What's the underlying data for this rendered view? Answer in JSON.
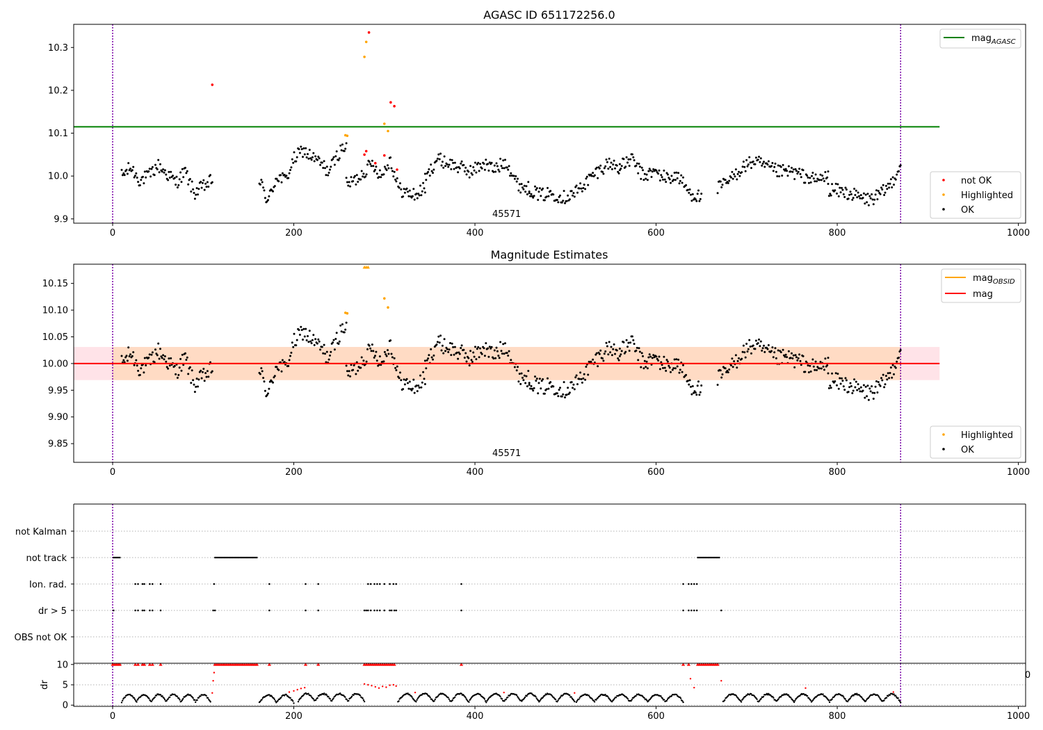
{
  "chart_data": [
    {
      "type": "scatter",
      "title": "AGASC ID 651172256.0",
      "xlabel": "",
      "ylabel": "",
      "xlim": [
        -43,
        1008
      ],
      "ylim": [
        9.89,
        10.354
      ],
      "x_ticks": [
        0,
        200,
        400,
        600,
        800,
        1000
      ],
      "y_ticks": [
        9.9,
        10.0,
        10.1,
        10.2,
        10.3
      ],
      "y_tick_labels": [
        "9.9",
        "10.0",
        "10.1",
        "10.2",
        "10.3"
      ],
      "grid": false,
      "vlines_dotted": [
        0,
        870
      ],
      "hlines": [
        {
          "name": "magAGASC",
          "y": 10.115,
          "x_range": [
            -43,
            913
          ],
          "color": "#008000"
        }
      ],
      "annotation": {
        "text": "45571",
        "x": 435,
        "y_position": "bottom"
      },
      "legend_upper": {
        "position": "upper right",
        "entries": [
          {
            "label": "mag",
            "subscript": "AGASC",
            "color": "#008000"
          }
        ]
      },
      "legend_lower": {
        "position": "lower right",
        "entries": [
          {
            "label": "not OK",
            "color": "#ff0000"
          },
          {
            "label": "Highlighted",
            "color": "#ffa500"
          },
          {
            "label": "OK",
            "color": "#000000"
          }
        ]
      },
      "series": [
        {
          "name": "not OK",
          "color": "#ff0000",
          "x": [
            110,
            278,
            280,
            283,
            290,
            300,
            307,
            311,
            314
          ],
          "y": [
            10.213,
            10.05,
            10.058,
            10.335,
            10.03,
            10.048,
            10.172,
            10.163,
            10.015
          ]
        },
        {
          "name": "Highlighted",
          "color": "#ffa500",
          "x": [
            257,
            259,
            278,
            280,
            300,
            304
          ],
          "y": [
            10.095,
            10.094,
            10.278,
            10.313,
            10.122,
            10.105
          ]
        },
        {
          "name": "OK",
          "color": "#000000",
          "segments": [
            {
              "x_start": 10,
              "x_end": 110,
              "y_points": [
                10.0,
                10.02,
                9.99,
                10.0,
                10.025,
                10.005,
                9.985,
                10.01,
                9.96,
                9.975,
                9.99
              ]
            },
            {
              "x_start": 162,
              "x_end": 258,
              "y_points": [
                9.99,
                9.94,
                10.0,
                9.99,
                10.04,
                10.06,
                10.045,
                10.03,
                10.01,
                10.05,
                10.075
              ]
            },
            {
              "x_start": 258,
              "x_end": 345,
              "y_points": [
                9.98,
                9.99,
                10.01,
                10.03,
                10.0,
                10.04,
                9.97,
                9.96,
                9.955,
                9.975
              ]
            },
            {
              "x_start": 345,
              "x_end": 460,
              "y_points": [
                9.99,
                10.04,
                10.03,
                10.02,
                10.01,
                10.03,
                10.015,
                10.035,
                9.98,
                9.97
              ]
            },
            {
              "x_start": 460,
              "x_end": 560,
              "y_points": [
                9.97,
                9.955,
                9.96,
                9.95,
                9.96,
                9.985,
                10.01,
                10.03,
                10.02
              ]
            },
            {
              "x_start": 560,
              "x_end": 650,
              "y_points": [
                10.02,
                10.04,
                10.0,
                10.01,
                9.995,
                10.0,
                9.96,
                9.95
              ]
            },
            {
              "x_start": 668,
              "x_end": 790,
              "y_points": [
                9.97,
                9.99,
                10.02,
                10.035,
                10.02,
                10.01,
                10.01,
                10.0,
                9.99,
                10.0
              ]
            },
            {
              "x_start": 790,
              "x_end": 870,
              "y_points": [
                9.97,
                9.965,
                9.96,
                9.95,
                9.945,
                9.955,
                9.98,
                10.025
              ]
            }
          ]
        }
      ]
    },
    {
      "type": "scatter",
      "title": "Magnitude Estimates",
      "xlabel": "",
      "ylabel": "",
      "xlim": [
        -43,
        1008
      ],
      "ylim": [
        9.815,
        10.186
      ],
      "x_ticks": [
        0,
        200,
        400,
        600,
        800,
        1000
      ],
      "y_ticks": [
        9.85,
        9.9,
        9.95,
        10.0,
        10.05,
        10.1,
        10.15
      ],
      "y_tick_labels": [
        "9.85",
        "9.90",
        "9.95",
        "10.00",
        "10.05",
        "10.10",
        "10.15"
      ],
      "grid": false,
      "vlines_dotted": [
        0,
        870
      ],
      "bands": [
        {
          "name": "mag band",
          "y_range": [
            9.969,
            10.031
          ],
          "x_range": [
            -43,
            913
          ],
          "color": "#ffc0cb"
        },
        {
          "name": "magOBSID band",
          "y_range": [
            9.969,
            10.031
          ],
          "x_range": [
            0,
            870
          ],
          "color": "#ffd8b8"
        }
      ],
      "hlines": [
        {
          "name": "magOBSID",
          "y": 10.0,
          "x_range": [
            0,
            870
          ],
          "color": "#ffa500"
        },
        {
          "name": "mag",
          "y": 10.0,
          "x_range": [
            -43,
            913
          ],
          "color": "#ff0000"
        }
      ],
      "annotation": {
        "text": "45571",
        "x": 435,
        "y_position": "bottom"
      },
      "legend_upper": {
        "position": "upper right",
        "entries": [
          {
            "label": "mag",
            "subscript": "OBSID",
            "color": "#ffa500"
          },
          {
            "label": "mag",
            "subscript": "",
            "color": "#ff0000"
          }
        ]
      },
      "legend_lower": {
        "position": "lower right",
        "entries": [
          {
            "label": "Highlighted",
            "color": "#ffa500"
          },
          {
            "label": "OK",
            "color": "#000000"
          }
        ]
      },
      "series": [
        {
          "name": "Highlighted",
          "color": "#ffa500",
          "x": [
            257,
            259,
            278,
            280,
            282,
            300,
            304
          ],
          "y": [
            10.095,
            10.094,
            10.184,
            10.184,
            10.184,
            10.122,
            10.105
          ]
        },
        {
          "name": "OK",
          "color": "#000000",
          "same_as_panel": 0
        }
      ]
    },
    {
      "type": "scatter",
      "title": "",
      "xlabel": "",
      "ylabel": "",
      "xlim": [
        -43,
        1008
      ],
      "categories": [
        "not Kalman",
        "not track",
        "Ion. rad.",
        "dr > 5",
        "OBS not OK"
      ],
      "grid": "dotted horizontal",
      "vlines_dotted": [
        0,
        870
      ],
      "flags": [
        {
          "category": "not Kalman",
          "x": []
        },
        {
          "category": "not track",
          "ranges": [
            [
              1,
              8
            ],
            [
              113,
              160
            ],
            [
              646,
              670
            ]
          ]
        },
        {
          "category": "Ion. rad.",
          "x": [
            25,
            28,
            33,
            35,
            41,
            44,
            53,
            112,
            173,
            213,
            227,
            282,
            285,
            289,
            292,
            295,
            300,
            306,
            310,
            313,
            385,
            630,
            636,
            639,
            642,
            645
          ]
        },
        {
          "category": "dr > 5",
          "x": [
            1,
            25,
            28,
            33,
            35,
            41,
            44,
            53,
            111,
            113,
            173,
            213,
            227,
            278,
            280,
            282,
            285,
            289,
            292,
            295,
            300,
            306,
            308,
            311,
            313,
            385,
            630,
            636,
            639,
            642,
            645,
            672
          ]
        },
        {
          "category": "OBS not OK",
          "x": []
        }
      ]
    },
    {
      "type": "scatter",
      "title": "",
      "xlabel": "",
      "ylabel": "dr",
      "xlim": [
        -43,
        1008
      ],
      "ylim": [
        -0.3,
        10.3
      ],
      "x_ticks": [
        0,
        200,
        400,
        600,
        800,
        1000
      ],
      "y_ticks": [
        0,
        5,
        10
      ],
      "y_tick_labels": [
        "0",
        "5",
        "10"
      ],
      "grid": "dotted horizontal",
      "vlines_dotted": [
        0,
        870
      ],
      "series": [
        {
          "name": "dr > 5",
          "color": "#ff0000",
          "marker": "triangle",
          "x": [
            0,
            2,
            4,
            6,
            8,
            25,
            28,
            33,
            35,
            41,
            44,
            53,
            173,
            213,
            227,
            385,
            630,
            636
          ],
          "y": [
            10,
            10,
            10,
            10,
            10,
            10,
            10,
            10,
            10,
            10,
            10,
            10,
            10,
            10,
            10,
            10,
            10,
            10
          ]
        },
        {
          "name": "dr > 5 band",
          "color": "#ff0000",
          "marker": "triangle",
          "ranges": [
            [
              113,
              160
            ],
            [
              278,
              313
            ],
            [
              646,
              670
            ]
          ],
          "y": 10
        },
        {
          "name": "dr red",
          "color": "#ff0000",
          "x": [
            110,
            111,
            112,
            195,
            200,
            204,
            208,
            212,
            278,
            282,
            286,
            290,
            294,
            298,
            302,
            306,
            310,
            313,
            334,
            432,
            510,
            638,
            642,
            672,
            765,
            862
          ],
          "y": [
            3.0,
            6.0,
            8.0,
            3.2,
            3.5,
            3.8,
            4.1,
            4.3,
            5.2,
            5.0,
            4.8,
            4.5,
            4.2,
            4.6,
            4.4,
            4.9,
            5.0,
            4.7,
            3.1,
            3.1,
            3.0,
            6.5,
            4.3,
            6.0,
            4.2,
            3.2
          ]
        },
        {
          "name": "dr",
          "color": "#000000",
          "segments": [
            {
              "x_start": 10,
              "x_end": 108,
              "waves": 6,
              "low": 0.8,
              "high": 2.6
            },
            {
              "x_start": 162,
              "x_end": 200,
              "waves": 2,
              "low": 0.6,
              "high": 2.5
            },
            {
              "x_start": 205,
              "x_end": 278,
              "waves": 4,
              "low": 1.0,
              "high": 2.8
            },
            {
              "x_start": 315,
              "x_end": 510,
              "waves": 10,
              "low": 0.8,
              "high": 2.8
            },
            {
              "x_start": 512,
              "x_end": 630,
              "waves": 6,
              "low": 0.8,
              "high": 2.6
            },
            {
              "x_start": 674,
              "x_end": 870,
              "waves": 10,
              "low": 0.8,
              "high": 2.7
            }
          ]
        }
      ],
      "annotation_right": "0"
    }
  ]
}
